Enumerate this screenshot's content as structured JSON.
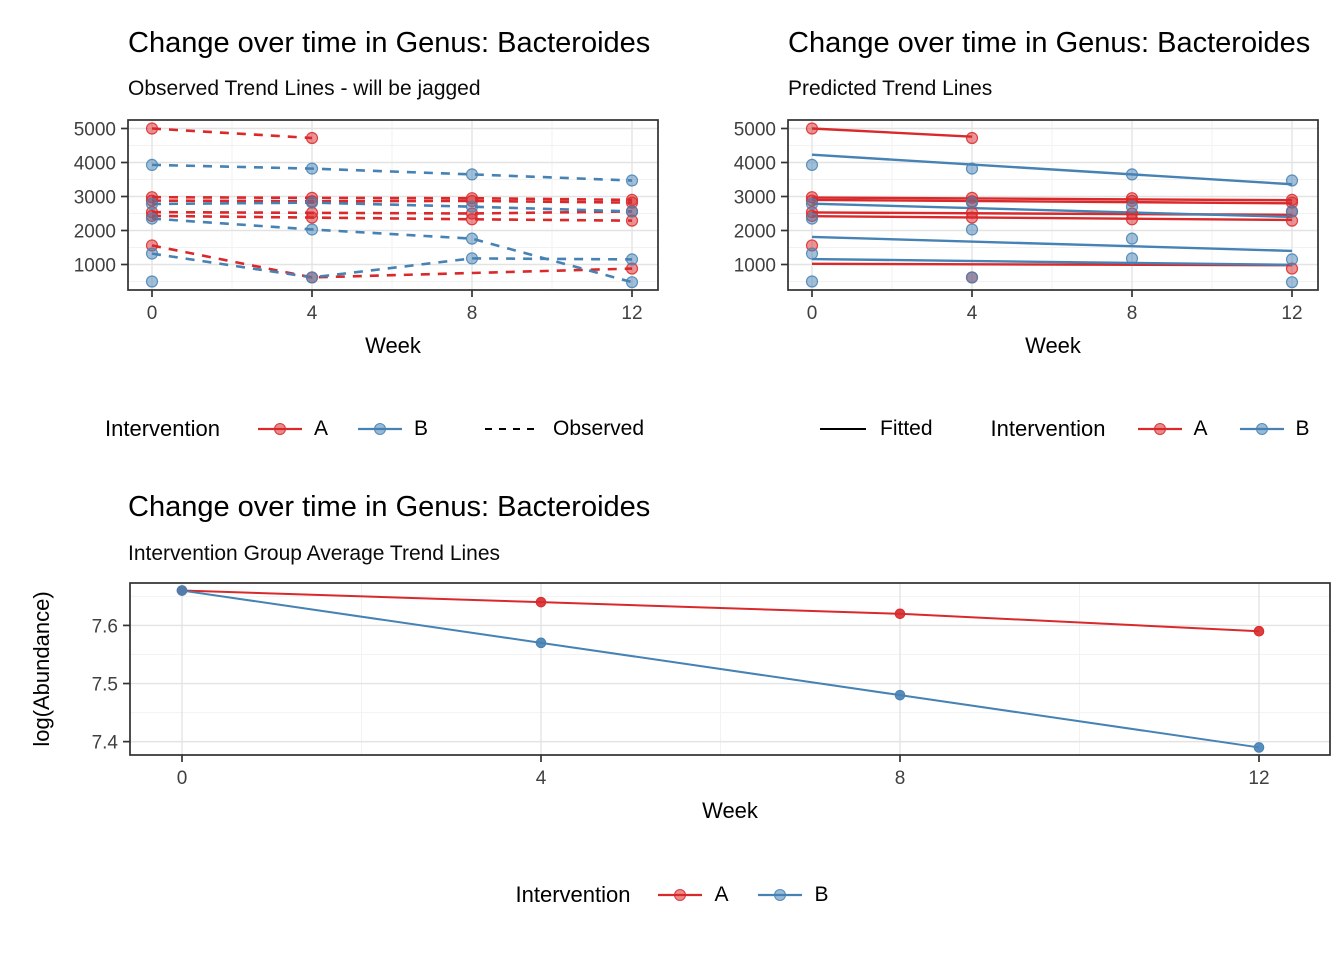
{
  "colors": {
    "red": "#D9292B",
    "blue": "#4682B4",
    "black": "#000000",
    "grid_major": "#E3E3E3",
    "grid_minor": "#F2F2F2",
    "panel_border": "#2F2F2F",
    "axis_text": "#404040",
    "axis_tick": "#333333"
  },
  "legends": {
    "observed": {
      "title": "Intervention",
      "item_a": "A",
      "item_b": "B",
      "linetype_label": "Observed"
    },
    "fitted": {
      "linetype_label": "Fitted",
      "title": "Intervention",
      "item_a": "A",
      "item_b": "B"
    },
    "average": {
      "title": "Intervention",
      "item_a": "A",
      "item_b": "B"
    }
  },
  "chart_data": [
    {
      "type": "line",
      "panel": "top-left",
      "title": "Change over time in Genus: Bacteroides",
      "subtitle": "Observed Trend Lines - will be jagged",
      "xlabel": "Week",
      "ylabel": "",
      "linetype": "dashed",
      "grid": true,
      "legend_position": "bottom",
      "xticks": [
        0,
        4,
        8,
        12
      ],
      "yticks": [
        1000,
        2000,
        3000,
        4000,
        5000
      ],
      "xlim": [
        -0.6,
        12.65
      ],
      "ylim": [
        250,
        5250
      ],
      "groups": [
        {
          "name": "A",
          "color": "#D9292B"
        },
        {
          "name": "B",
          "color": "#4682B4"
        }
      ],
      "subjects": [
        {
          "id": "A1",
          "group": "A",
          "weeks": [
            0,
            4
          ],
          "values": [
            5000,
            4720
          ]
        },
        {
          "id": "A2",
          "group": "A",
          "weeks": [
            0,
            4,
            8,
            12
          ],
          "values": [
            2980,
            2960,
            2950,
            2900
          ]
        },
        {
          "id": "A3",
          "group": "A",
          "weeks": [
            0,
            4,
            8,
            12
          ],
          "values": [
            2880,
            2860,
            2870,
            2820
          ]
        },
        {
          "id": "A4",
          "group": "A",
          "weeks": [
            0,
            4,
            8,
            12
          ],
          "values": [
            2540,
            2520,
            2500,
            2560
          ]
        },
        {
          "id": "A5",
          "group": "A",
          "weeks": [
            0,
            4,
            8,
            12
          ],
          "values": [
            2430,
            2380,
            2330,
            2290
          ]
        },
        {
          "id": "A6",
          "group": "A",
          "weeks": [
            0,
            4,
            12
          ],
          "values": [
            1560,
            620,
            880
          ]
        },
        {
          "id": "B1",
          "group": "B",
          "weeks": [
            0,
            4,
            8,
            12
          ],
          "values": [
            3930,
            3820,
            3650,
            3470
          ]
        },
        {
          "id": "B2",
          "group": "B",
          "weeks": [
            0,
            4,
            8,
            12
          ],
          "values": [
            2780,
            2820,
            2700,
            2560
          ]
        },
        {
          "id": "B3",
          "group": "B",
          "weeks": [
            0,
            4,
            8,
            12
          ],
          "values": [
            2350,
            2030,
            1760,
            480
          ]
        },
        {
          "id": "B4",
          "group": "B",
          "weeks": [
            0,
            4,
            8,
            12
          ],
          "values": [
            1320,
            620,
            1180,
            1150
          ]
        },
        {
          "id": "B5",
          "group": "B",
          "weeks": [
            0
          ],
          "values": [
            500
          ]
        }
      ]
    },
    {
      "type": "line",
      "panel": "top-right",
      "title": "Change over time in Genus: Bacteroides",
      "subtitle": "Predicted Trend Lines",
      "xlabel": "Week",
      "ylabel": "",
      "linetype": "solid",
      "grid": true,
      "legend_position": "bottom",
      "xticks": [
        0,
        4,
        8,
        12
      ],
      "yticks": [
        1000,
        2000,
        3000,
        4000,
        5000
      ],
      "xlim": [
        -0.6,
        12.65
      ],
      "ylim": [
        250,
        5250
      ],
      "groups": [
        {
          "name": "A",
          "color": "#D9292B"
        },
        {
          "name": "B",
          "color": "#4682B4"
        }
      ],
      "subjects": [
        {
          "id": "A1",
          "group": "A",
          "weeks": [
            0,
            4
          ],
          "values": [
            5000,
            4720
          ]
        },
        {
          "id": "A2",
          "group": "A",
          "weeks": [
            0,
            4,
            8,
            12
          ],
          "values": [
            2980,
            2960,
            2950,
            2900
          ]
        },
        {
          "id": "A3",
          "group": "A",
          "weeks": [
            0,
            4,
            8,
            12
          ],
          "values": [
            2880,
            2860,
            2870,
            2820
          ]
        },
        {
          "id": "A4",
          "group": "A",
          "weeks": [
            0,
            4,
            8,
            12
          ],
          "values": [
            2540,
            2520,
            2500,
            2560
          ]
        },
        {
          "id": "A5",
          "group": "A",
          "weeks": [
            0,
            4,
            8,
            12
          ],
          "values": [
            2430,
            2380,
            2330,
            2290
          ]
        },
        {
          "id": "A6",
          "group": "A",
          "weeks": [
            0,
            4,
            12
          ],
          "values": [
            1560,
            620,
            880
          ]
        },
        {
          "id": "B1",
          "group": "B",
          "weeks": [
            0,
            4,
            8,
            12
          ],
          "values": [
            3930,
            3820,
            3650,
            3470
          ]
        },
        {
          "id": "B2",
          "group": "B",
          "weeks": [
            0,
            4,
            8,
            12
          ],
          "values": [
            2780,
            2820,
            2700,
            2560
          ]
        },
        {
          "id": "B3",
          "group": "B",
          "weeks": [
            0,
            4,
            8,
            12
          ],
          "values": [
            2350,
            2030,
            1760,
            480
          ]
        },
        {
          "id": "B4",
          "group": "B",
          "weeks": [
            0,
            4,
            8,
            12
          ],
          "values": [
            1320,
            620,
            1180,
            1150
          ]
        },
        {
          "id": "B5",
          "group": "B",
          "weeks": [
            0
          ],
          "values": [
            500
          ]
        }
      ],
      "fitted_lines": [
        {
          "group": "A",
          "x": [
            0,
            4
          ],
          "y": [
            5000,
            4760
          ]
        },
        {
          "group": "A",
          "x": [
            0,
            12
          ],
          "y": [
            2970,
            2890
          ]
        },
        {
          "group": "A",
          "x": [
            0,
            12
          ],
          "y": [
            2900,
            2800
          ]
        },
        {
          "group": "A",
          "x": [
            0,
            12
          ],
          "y": [
            2530,
            2460
          ]
        },
        {
          "group": "A",
          "x": [
            0,
            12
          ],
          "y": [
            2420,
            2310
          ]
        },
        {
          "group": "A",
          "x": [
            0,
            12
          ],
          "y": [
            1020,
            980
          ]
        },
        {
          "group": "B",
          "x": [
            0,
            12
          ],
          "y": [
            4230,
            3360
          ]
        },
        {
          "group": "B",
          "x": [
            0,
            12
          ],
          "y": [
            2790,
            2400
          ]
        },
        {
          "group": "B",
          "x": [
            0,
            12
          ],
          "y": [
            1810,
            1400
          ]
        },
        {
          "group": "B",
          "x": [
            0,
            12
          ],
          "y": [
            1160,
            990
          ]
        }
      ]
    },
    {
      "type": "line",
      "panel": "bottom",
      "title": "Change over time in Genus: Bacteroides",
      "subtitle": "Intervention Group Average Trend Lines",
      "xlabel": "Week",
      "ylabel": "log(Abundance)",
      "grid": true,
      "legend_position": "bottom",
      "x": [
        0,
        4,
        8,
        12
      ],
      "series": [
        {
          "name": "A",
          "color": "#D9292B",
          "values": [
            7.66,
            7.64,
            7.62,
            7.59
          ]
        },
        {
          "name": "B",
          "color": "#4682B4",
          "values": [
            7.66,
            7.57,
            7.48,
            7.39
          ]
        }
      ],
      "xticks": [
        0,
        4,
        8,
        12
      ],
      "yticks": [
        7.4,
        7.5,
        7.6
      ],
      "xlim": [
        -0.58,
        12.79
      ],
      "ylim": [
        7.377,
        7.673
      ]
    }
  ]
}
